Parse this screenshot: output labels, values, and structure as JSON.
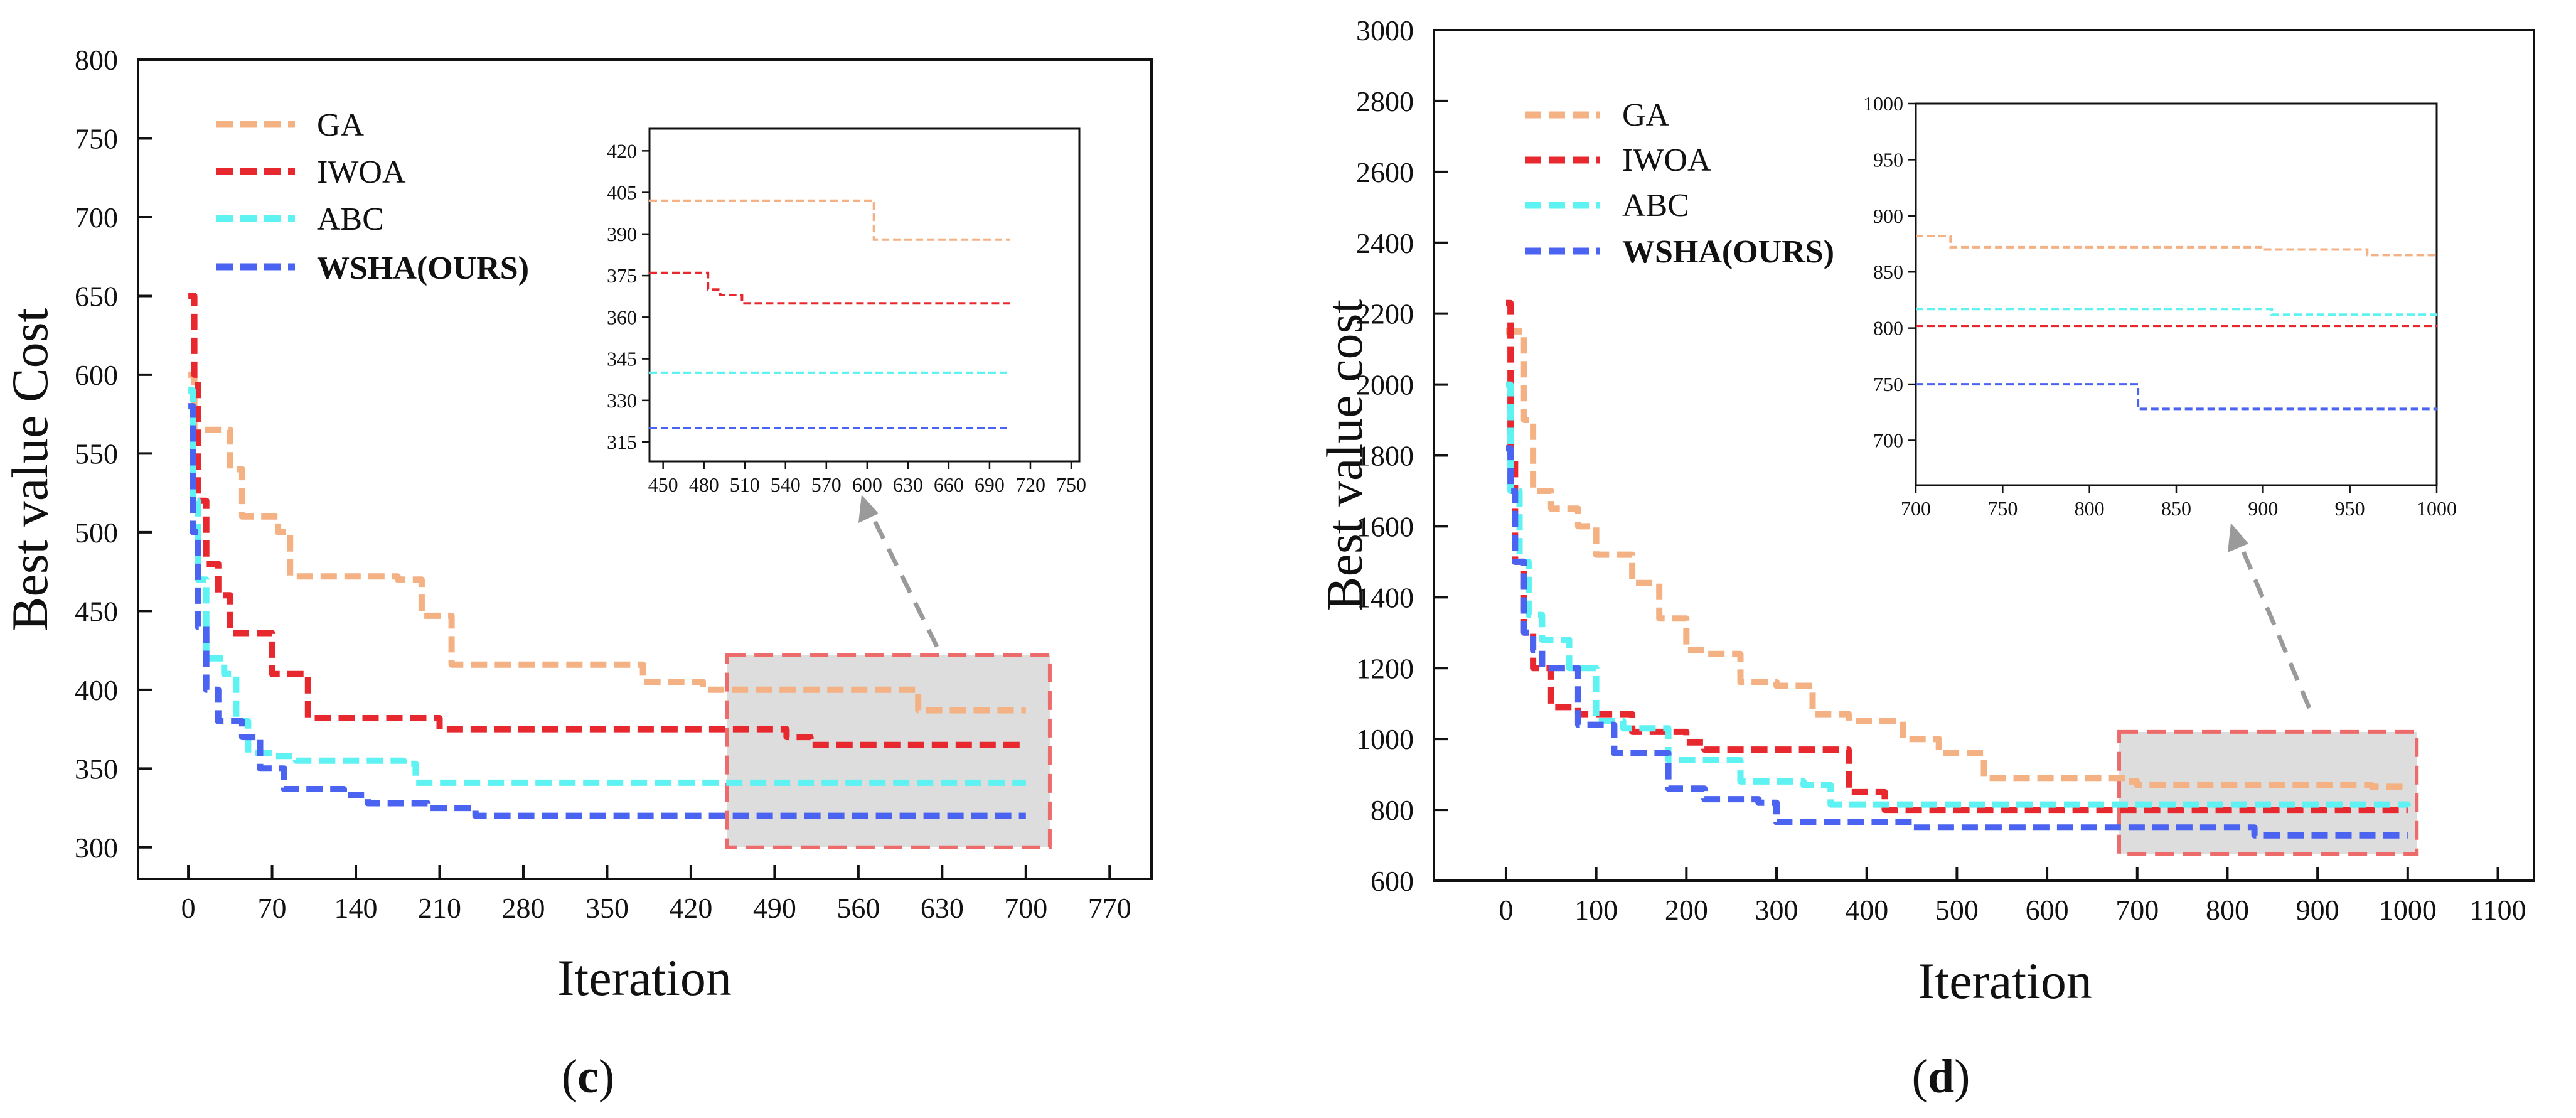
{
  "chart_data": [
    {
      "type": "line",
      "panel_label": "c",
      "xlabel": "Iteration",
      "ylabel": "Best value Cost",
      "xlim": [
        -42,
        805
      ],
      "ylim": [
        280,
        800
      ],
      "xticks": [
        0,
        70,
        140,
        210,
        280,
        350,
        420,
        490,
        560,
        630,
        700,
        770
      ],
      "yticks": [
        300,
        350,
        400,
        450,
        500,
        550,
        600,
        650,
        700,
        750,
        800
      ],
      "legend": [
        "GA",
        "IWOA",
        "ABC",
        "WSHA(OURS)"
      ],
      "legend_position": "top-left",
      "series": [
        {
          "name": "GA",
          "color": "#f4b183",
          "x": [
            0,
            5,
            10,
            35,
            45,
            60,
            75,
            85,
            175,
            195,
            220,
            370,
            380,
            430,
            600,
            610,
            700
          ],
          "y": [
            600,
            565,
            565,
            540,
            510,
            510,
            500,
            472,
            470,
            447,
            416,
            416,
            405,
            400,
            400,
            387,
            387
          ]
        },
        {
          "name": "IWOA",
          "color": "#e8282f",
          "x": [
            0,
            5,
            8,
            15,
            25,
            35,
            55,
            70,
            90,
            100,
            190,
            210,
            480,
            500,
            520,
            700
          ],
          "y": [
            650,
            600,
            520,
            480,
            460,
            436,
            436,
            410,
            410,
            382,
            382,
            375,
            375,
            370,
            365,
            365
          ]
        },
        {
          "name": "ABC",
          "color": "#5ef2f2",
          "x": [
            0,
            4,
            8,
            15,
            30,
            40,
            50,
            70,
            90,
            180,
            190,
            700
          ],
          "y": [
            590,
            520,
            470,
            420,
            410,
            380,
            360,
            358,
            355,
            353,
            341,
            341
          ]
        },
        {
          "name": "WSHA(OURS)",
          "color": "#4a63f0",
          "x": [
            0,
            4,
            8,
            15,
            25,
            45,
            60,
            80,
            130,
            150,
            200,
            240,
            700
          ],
          "y": [
            580,
            500,
            440,
            400,
            380,
            370,
            350,
            337,
            333,
            328,
            325,
            320,
            320
          ]
        }
      ],
      "highlight_box": {
        "x_range": [
          450,
          720
        ],
        "y_range": [
          300,
          422
        ]
      },
      "inset": {
        "xlim": [
          440,
          756
        ],
        "ylim": [
          308,
          428
        ],
        "xticks": [
          450,
          480,
          510,
          540,
          570,
          600,
          630,
          660,
          690,
          720,
          750
        ],
        "yticks": [
          315,
          330,
          345,
          360,
          375,
          390,
          405,
          420
        ],
        "series": [
          {
            "name": "GA",
            "x": [
              440,
              600,
              605,
              705
            ],
            "y": [
              402,
              402,
              388,
              388
            ]
          },
          {
            "name": "IWOA",
            "x": [
              440,
              480,
              483,
              492,
              508,
              705
            ],
            "y": [
              376,
              376,
              370,
              368,
              365,
              365
            ]
          },
          {
            "name": "ABC",
            "x": [
              440,
              705
            ],
            "y": [
              340,
              340
            ]
          },
          {
            "name": "WSHA(OURS)",
            "x": [
              440,
              705
            ],
            "y": [
              320,
              320
            ]
          }
        ]
      }
    },
    {
      "type": "line",
      "panel_label": "d",
      "xlabel": "Iteration",
      "ylabel": "Best value cost",
      "xlim": [
        -80,
        1140
      ],
      "ylim": [
        600,
        3000
      ],
      "xticks": [
        0,
        100,
        200,
        300,
        400,
        500,
        600,
        700,
        800,
        900,
        1000,
        1100
      ],
      "yticks": [
        600,
        800,
        1000,
        1200,
        1400,
        1600,
        1800,
        2000,
        2200,
        2400,
        2600,
        2800,
        3000
      ],
      "legend": [
        "GA",
        "IWOA",
        "ABC",
        "WSHA(OURS)"
      ],
      "legend_position": "top-left",
      "series": [
        {
          "name": "GA",
          "color": "#f4b183",
          "x": [
            0,
            10,
            20,
            30,
            50,
            80,
            100,
            140,
            170,
            200,
            220,
            260,
            300,
            340,
            380,
            440,
            480,
            530,
            560,
            690,
            700,
            960,
            1000
          ],
          "y": [
            2150,
            2150,
            1900,
            1700,
            1650,
            1600,
            1520,
            1440,
            1340,
            1250,
            1240,
            1160,
            1150,
            1070,
            1050,
            1000,
            960,
            890,
            890,
            880,
            870,
            865,
            865
          ]
        },
        {
          "name": "IWOA",
          "color": "#e8282f",
          "x": [
            0,
            5,
            10,
            20,
            30,
            50,
            80,
            140,
            200,
            220,
            370,
            380,
            420,
            1000
          ],
          "y": [
            2230,
            1800,
            1500,
            1300,
            1200,
            1090,
            1070,
            1020,
            990,
            970,
            970,
            850,
            800,
            800
          ]
        },
        {
          "name": "ABC",
          "color": "#5ef2f2",
          "x": [
            0,
            5,
            15,
            25,
            40,
            70,
            100,
            130,
            180,
            260,
            330,
            360,
            900,
            1000
          ],
          "y": [
            2000,
            1700,
            1500,
            1350,
            1280,
            1200,
            1050,
            1030,
            940,
            880,
            870,
            815,
            815,
            810
          ]
        },
        {
          "name": "WSHA(OURS)",
          "color": "#4a63f0",
          "x": [
            0,
            5,
            10,
            20,
            30,
            40,
            80,
            120,
            180,
            220,
            280,
            300,
            450,
            825,
            830,
            1000
          ],
          "y": [
            1820,
            1700,
            1500,
            1300,
            1250,
            1200,
            1040,
            960,
            860,
            830,
            820,
            765,
            750,
            750,
            728,
            728
          ]
        }
      ],
      "highlight_box": {
        "x_range": [
          680,
          1010
        ],
        "y_range": [
          675,
          1020
        ]
      },
      "inset": {
        "xlim": [
          700,
          1000
        ],
        "ylim": [
          660,
          1000
        ],
        "xticks": [
          700,
          750,
          800,
          850,
          900,
          950,
          1000
        ],
        "yticks": [
          700,
          750,
          800,
          850,
          900,
          950,
          1000
        ],
        "series": [
          {
            "name": "GA",
            "x": [
              700,
              715,
              720,
              900,
              960,
              1000
            ],
            "y": [
              882,
              882,
              872,
              870,
              865,
              865
            ]
          },
          {
            "name": "IWOA",
            "x": [
              700,
              1000
            ],
            "y": [
              802,
              802
            ]
          },
          {
            "name": "ABC",
            "x": [
              700,
              900,
              905,
              1000
            ],
            "y": [
              817,
              817,
              812,
              812
            ]
          },
          {
            "name": "WSHA(OURS)",
            "x": [
              700,
              825,
              828,
              1000
            ],
            "y": [
              750,
              750,
              728,
              728
            ]
          }
        ]
      }
    }
  ]
}
